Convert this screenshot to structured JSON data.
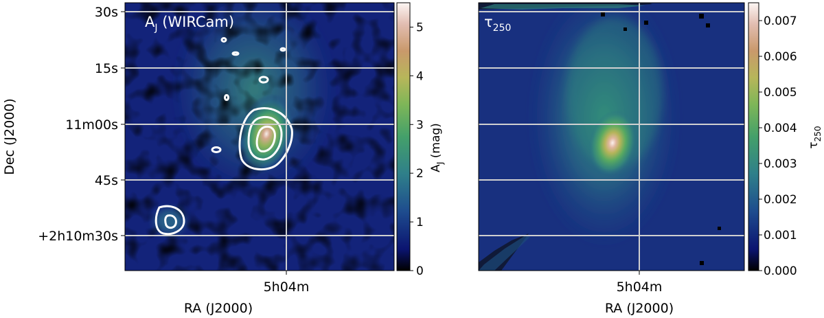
{
  "chart_data": [
    {
      "type": "heatmap",
      "panel_label": "A",
      "panel_label_sub": "J",
      "panel_label_rest": " (WIRCam)",
      "xlabel": "RA (J2000)",
      "ylabel": "Dec (J2000)",
      "x_ticks": [
        "5h04m"
      ],
      "y_ticks": [
        "30s",
        "15s",
        "11m00s",
        "45s",
        "+2h10m30s"
      ],
      "colorbar": {
        "label_main": "A",
        "label_sub": "J",
        "label_rest": " (mag)",
        "ticks": [
          "0",
          "1",
          "2",
          "3",
          "4",
          "5"
        ],
        "range": [
          0,
          5.5
        ],
        "colormap": "gist_earth"
      },
      "peak_value": 5.2,
      "contours": "white contours around peak and lower-left source",
      "grid": true
    },
    {
      "type": "heatmap",
      "panel_label": "τ",
      "panel_label_sub": "250",
      "xlabel": "RA (J2000)",
      "x_ticks": [
        "5h04m"
      ],
      "colorbar": {
        "label_main": "τ",
        "label_sub": "250",
        "ticks": [
          "0.000",
          "0.001",
          "0.002",
          "0.003",
          "0.004",
          "0.005",
          "0.006",
          "0.007"
        ],
        "range": [
          0,
          0.0075
        ],
        "colormap": "gist_earth"
      },
      "peak_value": 0.0075,
      "grid": true
    }
  ],
  "colors": {
    "background_low": "#0f1d6e",
    "mid_green": "#3f9a6a",
    "high": "#f5e8e6",
    "grid": "#d0d0d0",
    "contour": "#ffffff"
  }
}
